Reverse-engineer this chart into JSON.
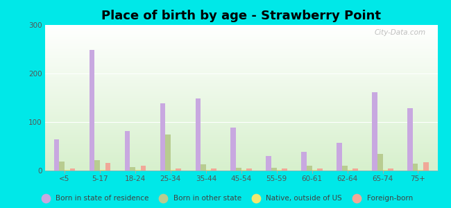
{
  "title": "Place of birth by age - Strawberry Point",
  "categories": [
    "<5",
    "5-17",
    "18-24",
    "25-34",
    "35-44",
    "45-54",
    "55-59",
    "60-61",
    "62-64",
    "65-74",
    "75+"
  ],
  "series": {
    "born_in_state": [
      65,
      248,
      82,
      138,
      148,
      88,
      30,
      38,
      57,
      162,
      128
    ],
    "born_other_state": [
      18,
      22,
      7,
      75,
      13,
      6,
      6,
      10,
      10,
      35,
      14
    ],
    "native_outside_us": [
      2,
      2,
      2,
      2,
      2,
      2,
      2,
      2,
      2,
      2,
      2
    ],
    "foreign_born": [
      4,
      16,
      10,
      4,
      4,
      5,
      4,
      4,
      4,
      4,
      17
    ]
  },
  "colors": {
    "born_in_state": "#c8a8e0",
    "born_other_state": "#b8cc90",
    "native_outside_us": "#f0e870",
    "foreign_born": "#f0a898"
  },
  "legend_labels": [
    "Born in state of residence",
    "Born in other state",
    "Native, outside of US",
    "Foreign-born"
  ],
  "ylim": [
    0,
    300
  ],
  "yticks": [
    0,
    100,
    200,
    300
  ],
  "background_color": "#00e8e8",
  "bar_width": 0.15,
  "title_fontsize": 13,
  "watermark": "City-Data.com"
}
